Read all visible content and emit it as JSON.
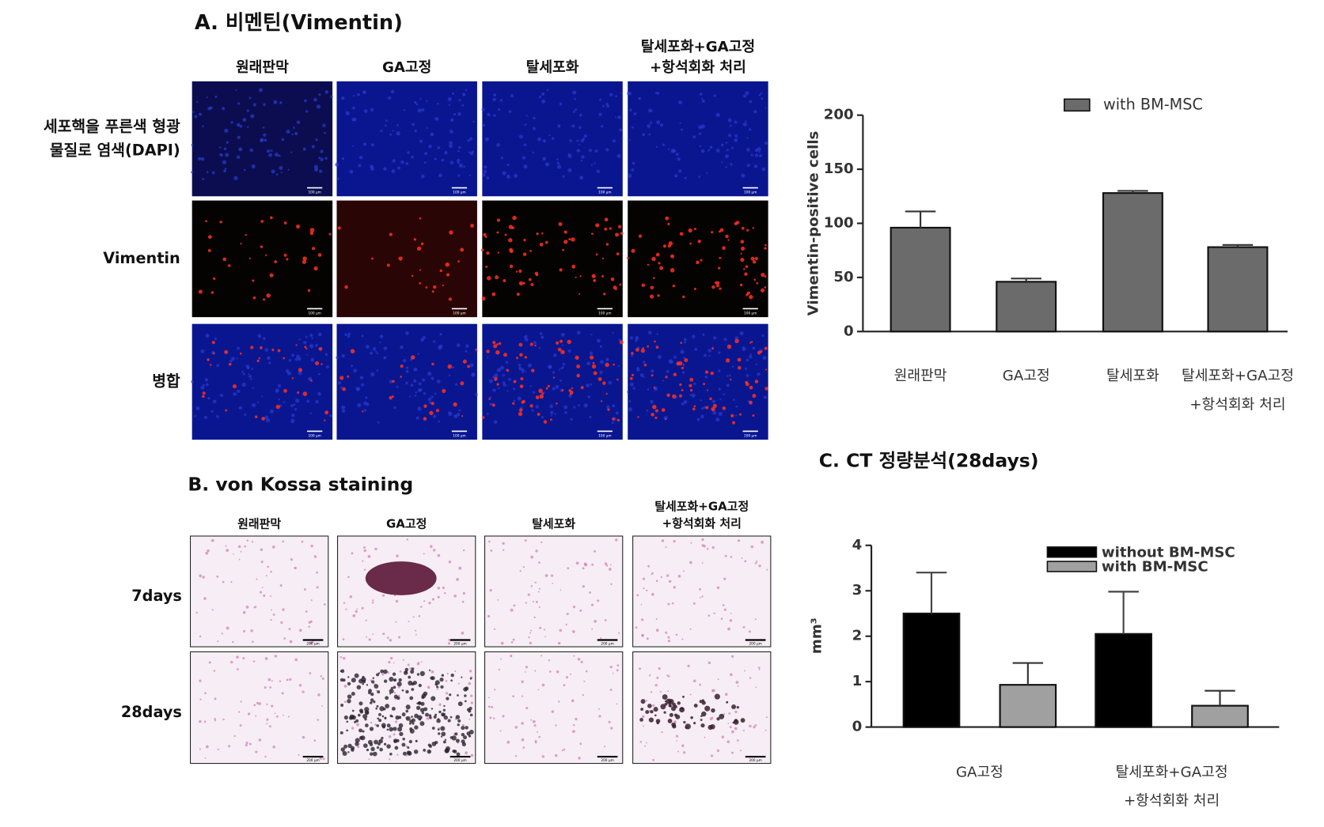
{
  "panel_a": {
    "title": "A. 비멘틴(Vimentin)",
    "columns": [
      "원래판막",
      "GA고정",
      "탈세포화",
      "탈세포화+GA고정 +항석회화 처리"
    ],
    "rows": [
      "세포핵을 푸른색 형광 물질로 염색(DAPI)",
      "Vimentin",
      "병합"
    ],
    "scale_bar": "100 μm"
  },
  "panel_b": {
    "title": "B. von Kossa staining",
    "columns": [
      "원래판막",
      "GA고정",
      "탈세포화",
      "탈세포화+GA고정 +항석회화 처리"
    ],
    "rows": [
      "7days",
      "28days"
    ],
    "scale_bar": "200 μm"
  },
  "chart_data": [
    {
      "type": "bar",
      "y_label": "Vimentin-positive cells",
      "categories": [
        "원래판막",
        "GA고정",
        "탈세포화",
        "탈세포화+GA고정 +항석회화 처리"
      ],
      "series": [
        {
          "name": "with BM-MSC",
          "color": "#6b6b6b",
          "values": [
            96,
            46,
            128,
            78
          ],
          "errors": [
            15,
            3,
            2,
            2
          ]
        }
      ],
      "ylim": [
        0,
        200
      ],
      "yticks": [
        0,
        50,
        100,
        150,
        200
      ],
      "legend": "top"
    },
    {
      "type": "bar",
      "title": "C. CT 정량분석(28days)",
      "y_label": "mm³",
      "categories": [
        "GA고정",
        "탈세포화+GA고정 +항석회화 처리"
      ],
      "series": [
        {
          "name": "without BM-MSC",
          "color": "#000000",
          "values": [
            2.5,
            2.05
          ],
          "errors": [
            0.9,
            0.93
          ]
        },
        {
          "name": "with BM-MSC",
          "color": "#a0a0a0",
          "values": [
            0.93,
            0.47
          ],
          "errors": [
            0.48,
            0.33
          ]
        }
      ],
      "ylim": [
        0,
        4
      ],
      "yticks": [
        0,
        1,
        2,
        3,
        4
      ],
      "legend": "top"
    }
  ]
}
